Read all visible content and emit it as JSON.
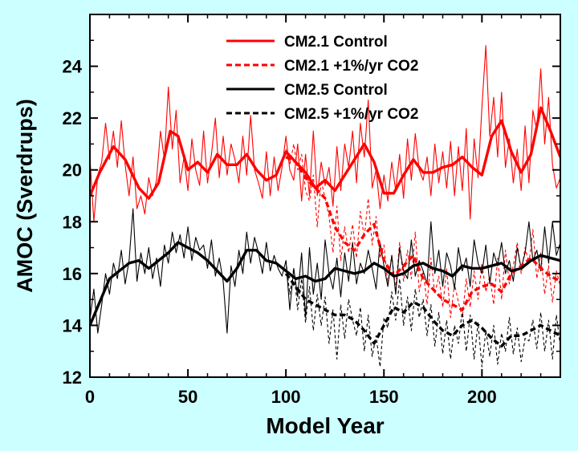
{
  "chart_data": {
    "type": "line",
    "xlabel": "Model Year",
    "ylabel": "AMOC (Sverdrups)",
    "xlim": [
      0,
      240
    ],
    "ylim": [
      12,
      26
    ],
    "xticks": [
      0,
      50,
      100,
      150,
      200
    ],
    "yticks": [
      12,
      14,
      16,
      18,
      20,
      22,
      24
    ],
    "legend_position": "top-center",
    "legend": [
      {
        "label": "CM2.1 Control",
        "color": "#ff0000",
        "dash": "solid"
      },
      {
        "label": "CM2.1 +1%/yr CO2",
        "color": "#ff0000",
        "dash": "dashed"
      },
      {
        "label": "CM2.5 Control",
        "color": "#000000",
        "dash": "solid"
      },
      {
        "label": "CM2.5 +1%/yr CO2",
        "color": "#000000",
        "dash": "dashed"
      }
    ],
    "series": [
      {
        "name": "CM2.1 Control",
        "color": "#ff0000",
        "dash": "solid",
        "smooth_x": [
          0,
          5,
          12,
          18,
          25,
          30,
          35,
          41,
          45,
          50,
          55,
          60,
          65,
          70,
          75,
          80,
          85,
          90,
          95,
          100,
          105,
          110,
          115,
          120,
          125,
          130,
          135,
          140,
          145,
          150,
          155,
          160,
          165,
          170,
          175,
          180,
          185,
          190,
          195,
          200,
          205,
          210,
          215,
          220,
          225,
          230,
          235,
          240
        ],
        "smooth_y": [
          19.0,
          19.9,
          20.9,
          20.4,
          19.3,
          18.9,
          19.5,
          21.5,
          21.3,
          20.0,
          20.3,
          19.9,
          20.6,
          20.2,
          20.2,
          20.6,
          20.0,
          19.6,
          19.8,
          20.7,
          20.3,
          19.9,
          19.3,
          19.6,
          19.2,
          19.8,
          20.4,
          21.0,
          20.3,
          19.1,
          19.1,
          19.8,
          20.4,
          19.9,
          19.9,
          20.1,
          20.2,
          20.5,
          20.1,
          19.8,
          21.3,
          21.9,
          20.7,
          19.9,
          20.6,
          22.4,
          21.5,
          20.5
        ],
        "raw_x": [
          0,
          2,
          4,
          6,
          8,
          10,
          12,
          14,
          16,
          18,
          20,
          22,
          24,
          26,
          28,
          30,
          32,
          34,
          36,
          38,
          40,
          42,
          44,
          46,
          48,
          50,
          52,
          54,
          56,
          58,
          60,
          62,
          64,
          66,
          68,
          70,
          72,
          74,
          76,
          78,
          80,
          82,
          84,
          86,
          88,
          90,
          92,
          94,
          96,
          98,
          100,
          102,
          104,
          106,
          108,
          110,
          112,
          114,
          116,
          118,
          120,
          122,
          124,
          126,
          128,
          130,
          132,
          134,
          136,
          138,
          140,
          142,
          144,
          146,
          148,
          150,
          152,
          154,
          156,
          158,
          160,
          162,
          164,
          166,
          168,
          170,
          172,
          174,
          176,
          178,
          180,
          182,
          184,
          186,
          188,
          190,
          192,
          194,
          196,
          198,
          200,
          202,
          204,
          206,
          208,
          210,
          212,
          214,
          216,
          218,
          220,
          222,
          224,
          226,
          228,
          230,
          232,
          234,
          236,
          238,
          240
        ],
        "raw_y": [
          20.5,
          18.0,
          19.8,
          20.3,
          21.8,
          20.4,
          21.5,
          20.1,
          21.9,
          20.2,
          19.0,
          20.5,
          18.5,
          19.0,
          18.3,
          19.7,
          19.0,
          19.6,
          21.5,
          20.4,
          23.2,
          20.8,
          22.3,
          19.5,
          20.5,
          19.2,
          21.2,
          20.0,
          19.4,
          21.5,
          19.5,
          20.6,
          22.0,
          19.7,
          21.3,
          19.8,
          21.0,
          20.4,
          19.5,
          21.3,
          19.8,
          22.1,
          20.0,
          19.5,
          18.9,
          20.7,
          19.0,
          20.5,
          19.2,
          20.1,
          21.3,
          20.0,
          19.6,
          21.0,
          18.8,
          20.6,
          19.0,
          21.5,
          19.0,
          20.3,
          19.4,
          20.1,
          18.6,
          20.9,
          19.2,
          21.0,
          20.1,
          21.5,
          19.5,
          21.8,
          20.5,
          22.7,
          19.3,
          20.0,
          18.5,
          19.8,
          18.8,
          20.3,
          19.2,
          20.6,
          18.9,
          21.2,
          19.6,
          21.4,
          20.0,
          19.6,
          20.5,
          19.0,
          21.0,
          19.5,
          20.7,
          19.3,
          21.1,
          19.0,
          20.9,
          19.2,
          21.6,
          18.1,
          21.2,
          19.7,
          22.4,
          24.8,
          21.3,
          22.8,
          20.5,
          23.0,
          20.1,
          21.2,
          19.5,
          20.8,
          19.2,
          21.7,
          19.5,
          22.3,
          21.5,
          23.9,
          21.0,
          22.8,
          20.2,
          19.3,
          19.7
        ]
      },
      {
        "name": "CM2.1 +1%/yr CO2",
        "color": "#ff0000",
        "dash": "dashed",
        "smooth_x": [
          100,
          105,
          110,
          115,
          120,
          125,
          130,
          135,
          140,
          145,
          150,
          155,
          160,
          165,
          170,
          175,
          180,
          185,
          190,
          195,
          200,
          205,
          210,
          215,
          220,
          225,
          230,
          235,
          240
        ],
        "smooth_y": [
          20.5,
          20.3,
          19.7,
          19.3,
          18.9,
          17.8,
          17.2,
          16.9,
          17.5,
          17.9,
          16.5,
          15.9,
          16.3,
          16.7,
          15.8,
          15.4,
          15.0,
          14.8,
          14.6,
          15.3,
          15.5,
          15.6,
          15.3,
          16.0,
          16.3,
          16.6,
          16.2,
          15.9,
          15.7
        ],
        "raw_x": [
          100,
          102,
          104,
          106,
          108,
          110,
          112,
          114,
          116,
          118,
          120,
          122,
          124,
          126,
          128,
          130,
          132,
          134,
          136,
          138,
          140,
          142,
          144,
          146,
          148,
          150,
          152,
          154,
          156,
          158,
          160,
          162,
          164,
          166,
          168,
          170,
          172,
          174,
          176,
          178,
          180,
          182,
          184,
          186,
          188,
          190,
          192,
          194,
          196,
          198,
          200,
          202,
          204,
          206,
          208,
          210,
          212,
          214,
          216,
          218,
          220,
          222,
          224,
          226,
          228,
          230,
          232,
          234,
          236,
          238,
          240
        ],
        "raw_y": [
          20.8,
          20.2,
          21.0,
          20.0,
          20.6,
          19.2,
          18.8,
          19.8,
          17.8,
          19.6,
          18.9,
          18.2,
          16.8,
          18.6,
          16.5,
          17.8,
          16.8,
          17.9,
          16.6,
          18.4,
          17.4,
          18.9,
          17.1,
          18.2,
          16.6,
          17.1,
          15.6,
          16.7,
          15.4,
          17.2,
          15.7,
          16.9,
          15.8,
          17.6,
          15.3,
          16.1,
          14.8,
          16.6,
          15.2,
          15.9,
          14.7,
          16.2,
          14.3,
          15.6,
          14.9,
          14.3,
          15.8,
          14.7,
          16.1,
          15.0,
          16.4,
          15.3,
          15.9,
          14.8,
          16.6,
          15.0,
          16.9,
          15.6,
          16.3,
          17.2,
          16.0,
          17.0,
          16.4,
          17.7,
          15.8,
          16.8,
          15.2,
          16.3,
          14.9,
          16.1,
          15.5
        ]
      },
      {
        "name": "CM2.5 Control",
        "color": "#000000",
        "dash": "solid",
        "smooth_x": [
          0,
          5,
          10,
          15,
          20,
          25,
          30,
          35,
          40,
          45,
          50,
          55,
          60,
          65,
          70,
          75,
          80,
          85,
          90,
          95,
          100,
          105,
          110,
          115,
          120,
          125,
          130,
          135,
          140,
          145,
          150,
          155,
          160,
          165,
          170,
          175,
          180,
          185,
          190,
          195,
          200,
          205,
          210,
          215,
          220,
          225,
          230,
          235,
          240
        ],
        "smooth_y": [
          14.0,
          14.9,
          15.8,
          16.1,
          16.4,
          16.5,
          16.2,
          16.5,
          16.8,
          17.2,
          17.0,
          16.8,
          16.5,
          16.1,
          15.7,
          16.2,
          16.9,
          16.9,
          16.5,
          16.4,
          16.1,
          15.8,
          15.9,
          15.7,
          15.8,
          16.2,
          16.1,
          16.0,
          16.1,
          16.4,
          16.2,
          15.9,
          16.0,
          16.3,
          16.4,
          16.2,
          16.1,
          15.9,
          16.3,
          16.2,
          16.2,
          16.3,
          16.4,
          16.1,
          16.2,
          16.5,
          16.7,
          16.6,
          16.5
        ],
        "raw_x": [
          0,
          2,
          4,
          6,
          8,
          10,
          12,
          14,
          16,
          18,
          20,
          22,
          24,
          26,
          28,
          30,
          32,
          34,
          36,
          38,
          40,
          42,
          44,
          46,
          48,
          50,
          52,
          54,
          56,
          58,
          60,
          62,
          64,
          66,
          68,
          70,
          72,
          74,
          76,
          78,
          80,
          82,
          84,
          86,
          88,
          90,
          92,
          94,
          96,
          98,
          100,
          102,
          104,
          106,
          108,
          110,
          112,
          114,
          116,
          118,
          120,
          122,
          124,
          126,
          128,
          130,
          132,
          134,
          136,
          138,
          140,
          142,
          144,
          146,
          148,
          150,
          152,
          154,
          156,
          158,
          160,
          162,
          164,
          166,
          168,
          170,
          172,
          174,
          176,
          178,
          180,
          182,
          184,
          186,
          188,
          190,
          192,
          194,
          196,
          198,
          200,
          202,
          204,
          206,
          208,
          210,
          212,
          214,
          216,
          218,
          220,
          222,
          224,
          226,
          228,
          230,
          232,
          234,
          236,
          238,
          240
        ],
        "raw_y": [
          14.2,
          15.4,
          13.7,
          14.8,
          16.0,
          15.2,
          16.4,
          15.8,
          16.9,
          15.6,
          16.5,
          18.5,
          15.7,
          16.8,
          16.0,
          17.0,
          15.8,
          16.6,
          15.5,
          17.1,
          16.4,
          17.6,
          16.8,
          17.5,
          16.6,
          17.8,
          16.5,
          17.4,
          16.9,
          17.1,
          16.2,
          17.3,
          15.9,
          16.6,
          15.7,
          13.7,
          16.3,
          15.5,
          16.9,
          16.0,
          17.6,
          16.4,
          17.4,
          16.8,
          16.0,
          17.2,
          16.1,
          16.7,
          16.2,
          15.9,
          16.5,
          14.6,
          16.2,
          15.1,
          16.8,
          14.3,
          17.0,
          15.2,
          16.4,
          15.0,
          17.3,
          16.0,
          15.4,
          16.6,
          15.1,
          16.8,
          15.7,
          17.2,
          15.6,
          16.4,
          16.0,
          16.9,
          16.2,
          15.4,
          17.2,
          16.3,
          15.5,
          16.7,
          15.2,
          17.0,
          16.1,
          15.8,
          17.3,
          15.9,
          16.5,
          16.1,
          15.6,
          18.0,
          16.0,
          16.9,
          15.5,
          16.8,
          16.3,
          15.4,
          17.0,
          16.1,
          16.6,
          15.5,
          17.3,
          16.4,
          16.0,
          17.1,
          15.6,
          16.8,
          16.3,
          17.2,
          16.0,
          16.5,
          15.7,
          17.0,
          16.2,
          16.8,
          18.0,
          16.5,
          16.9,
          16.1,
          17.8,
          16.4,
          18.0,
          16.7,
          17.2
        ]
      },
      {
        "name": "CM2.5 +1%/yr CO2",
        "color": "#000000",
        "dash": "dashed",
        "smooth_x": [
          100,
          105,
          110,
          115,
          120,
          125,
          130,
          135,
          140,
          145,
          150,
          155,
          160,
          165,
          170,
          175,
          180,
          185,
          190,
          195,
          200,
          205,
          210,
          215,
          220,
          225,
          230,
          235,
          240
        ],
        "smooth_y": [
          16.0,
          15.5,
          15.0,
          14.8,
          14.6,
          14.4,
          14.4,
          14.2,
          13.8,
          13.3,
          14.0,
          14.7,
          14.5,
          14.9,
          14.7,
          14.2,
          13.8,
          13.6,
          14.0,
          14.2,
          13.9,
          13.5,
          13.2,
          13.6,
          13.6,
          13.8,
          14.0,
          13.8,
          13.6
        ],
        "raw_x": [
          100,
          102,
          104,
          106,
          108,
          110,
          112,
          114,
          116,
          118,
          120,
          122,
          124,
          126,
          128,
          130,
          132,
          134,
          136,
          138,
          140,
          142,
          144,
          146,
          148,
          150,
          152,
          154,
          156,
          158,
          160,
          162,
          164,
          166,
          168,
          170,
          172,
          174,
          176,
          178,
          180,
          182,
          184,
          186,
          188,
          190,
          192,
          194,
          196,
          198,
          200,
          202,
          204,
          206,
          208,
          210,
          212,
          214,
          216,
          218,
          220,
          222,
          224,
          226,
          228,
          230,
          232,
          234,
          236,
          238,
          240
        ],
        "raw_y": [
          16.5,
          15.2,
          16.2,
          14.6,
          15.8,
          14.1,
          15.5,
          13.8,
          15.2,
          14.0,
          15.1,
          13.3,
          14.6,
          12.7,
          14.8,
          13.5,
          15.0,
          14.2,
          13.6,
          14.7,
          13.0,
          14.4,
          12.8,
          13.6,
          12.4,
          14.3,
          13.9,
          15.3,
          14.2,
          15.8,
          14.0,
          15.1,
          13.8,
          15.4,
          14.3,
          15.0,
          13.6,
          14.8,
          13.2,
          14.5,
          12.9,
          14.2,
          12.7,
          14.0,
          13.3,
          14.6,
          13.0,
          14.4,
          12.7,
          14.1,
          12.4,
          13.8,
          12.8,
          14.0,
          12.5,
          13.7,
          13.0,
          14.3,
          12.9,
          13.9,
          12.6,
          13.5,
          13.4,
          14.2,
          13.1,
          14.5,
          13.0,
          14.2,
          12.7,
          14.4,
          13.2
        ]
      }
    ]
  }
}
